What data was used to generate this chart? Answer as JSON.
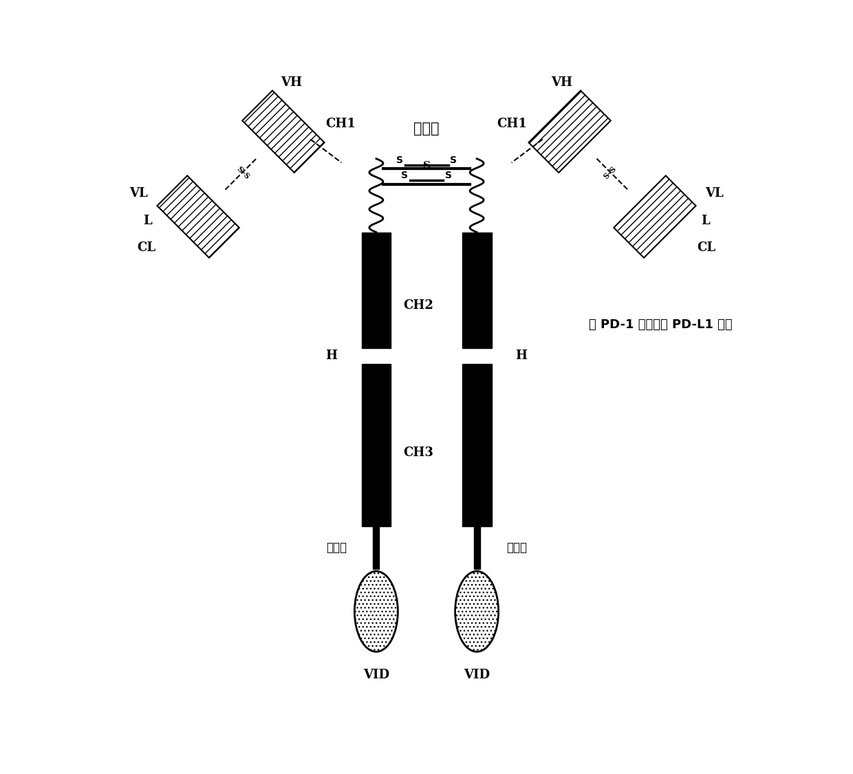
{
  "bg_color": "#ffffff",
  "black": "#000000",
  "gray_dark": "#333333",
  "gray_light": "#888888",
  "hatch_color": "#555555",
  "labels": {
    "VH_left": "VH",
    "VH_right": "VH",
    "CH1_left": "CH1",
    "CH1_right": "CH1",
    "hinge": "绮链区",
    "VL_left": "VL",
    "VL_right": "VL",
    "L_left": "L",
    "L_right": "L",
    "CL_left": "CL",
    "CL_right": "CL",
    "CH2": "CH2",
    "H_left": "H",
    "H_right": "H",
    "CH3": "CH3",
    "linker_left": "肽接头",
    "linker_right": "肽接头",
    "VID_left": "VID",
    "VID_right": "VID",
    "antibody_label": "抗 PD-1 抗体或抗 PD-L1 抗体"
  }
}
